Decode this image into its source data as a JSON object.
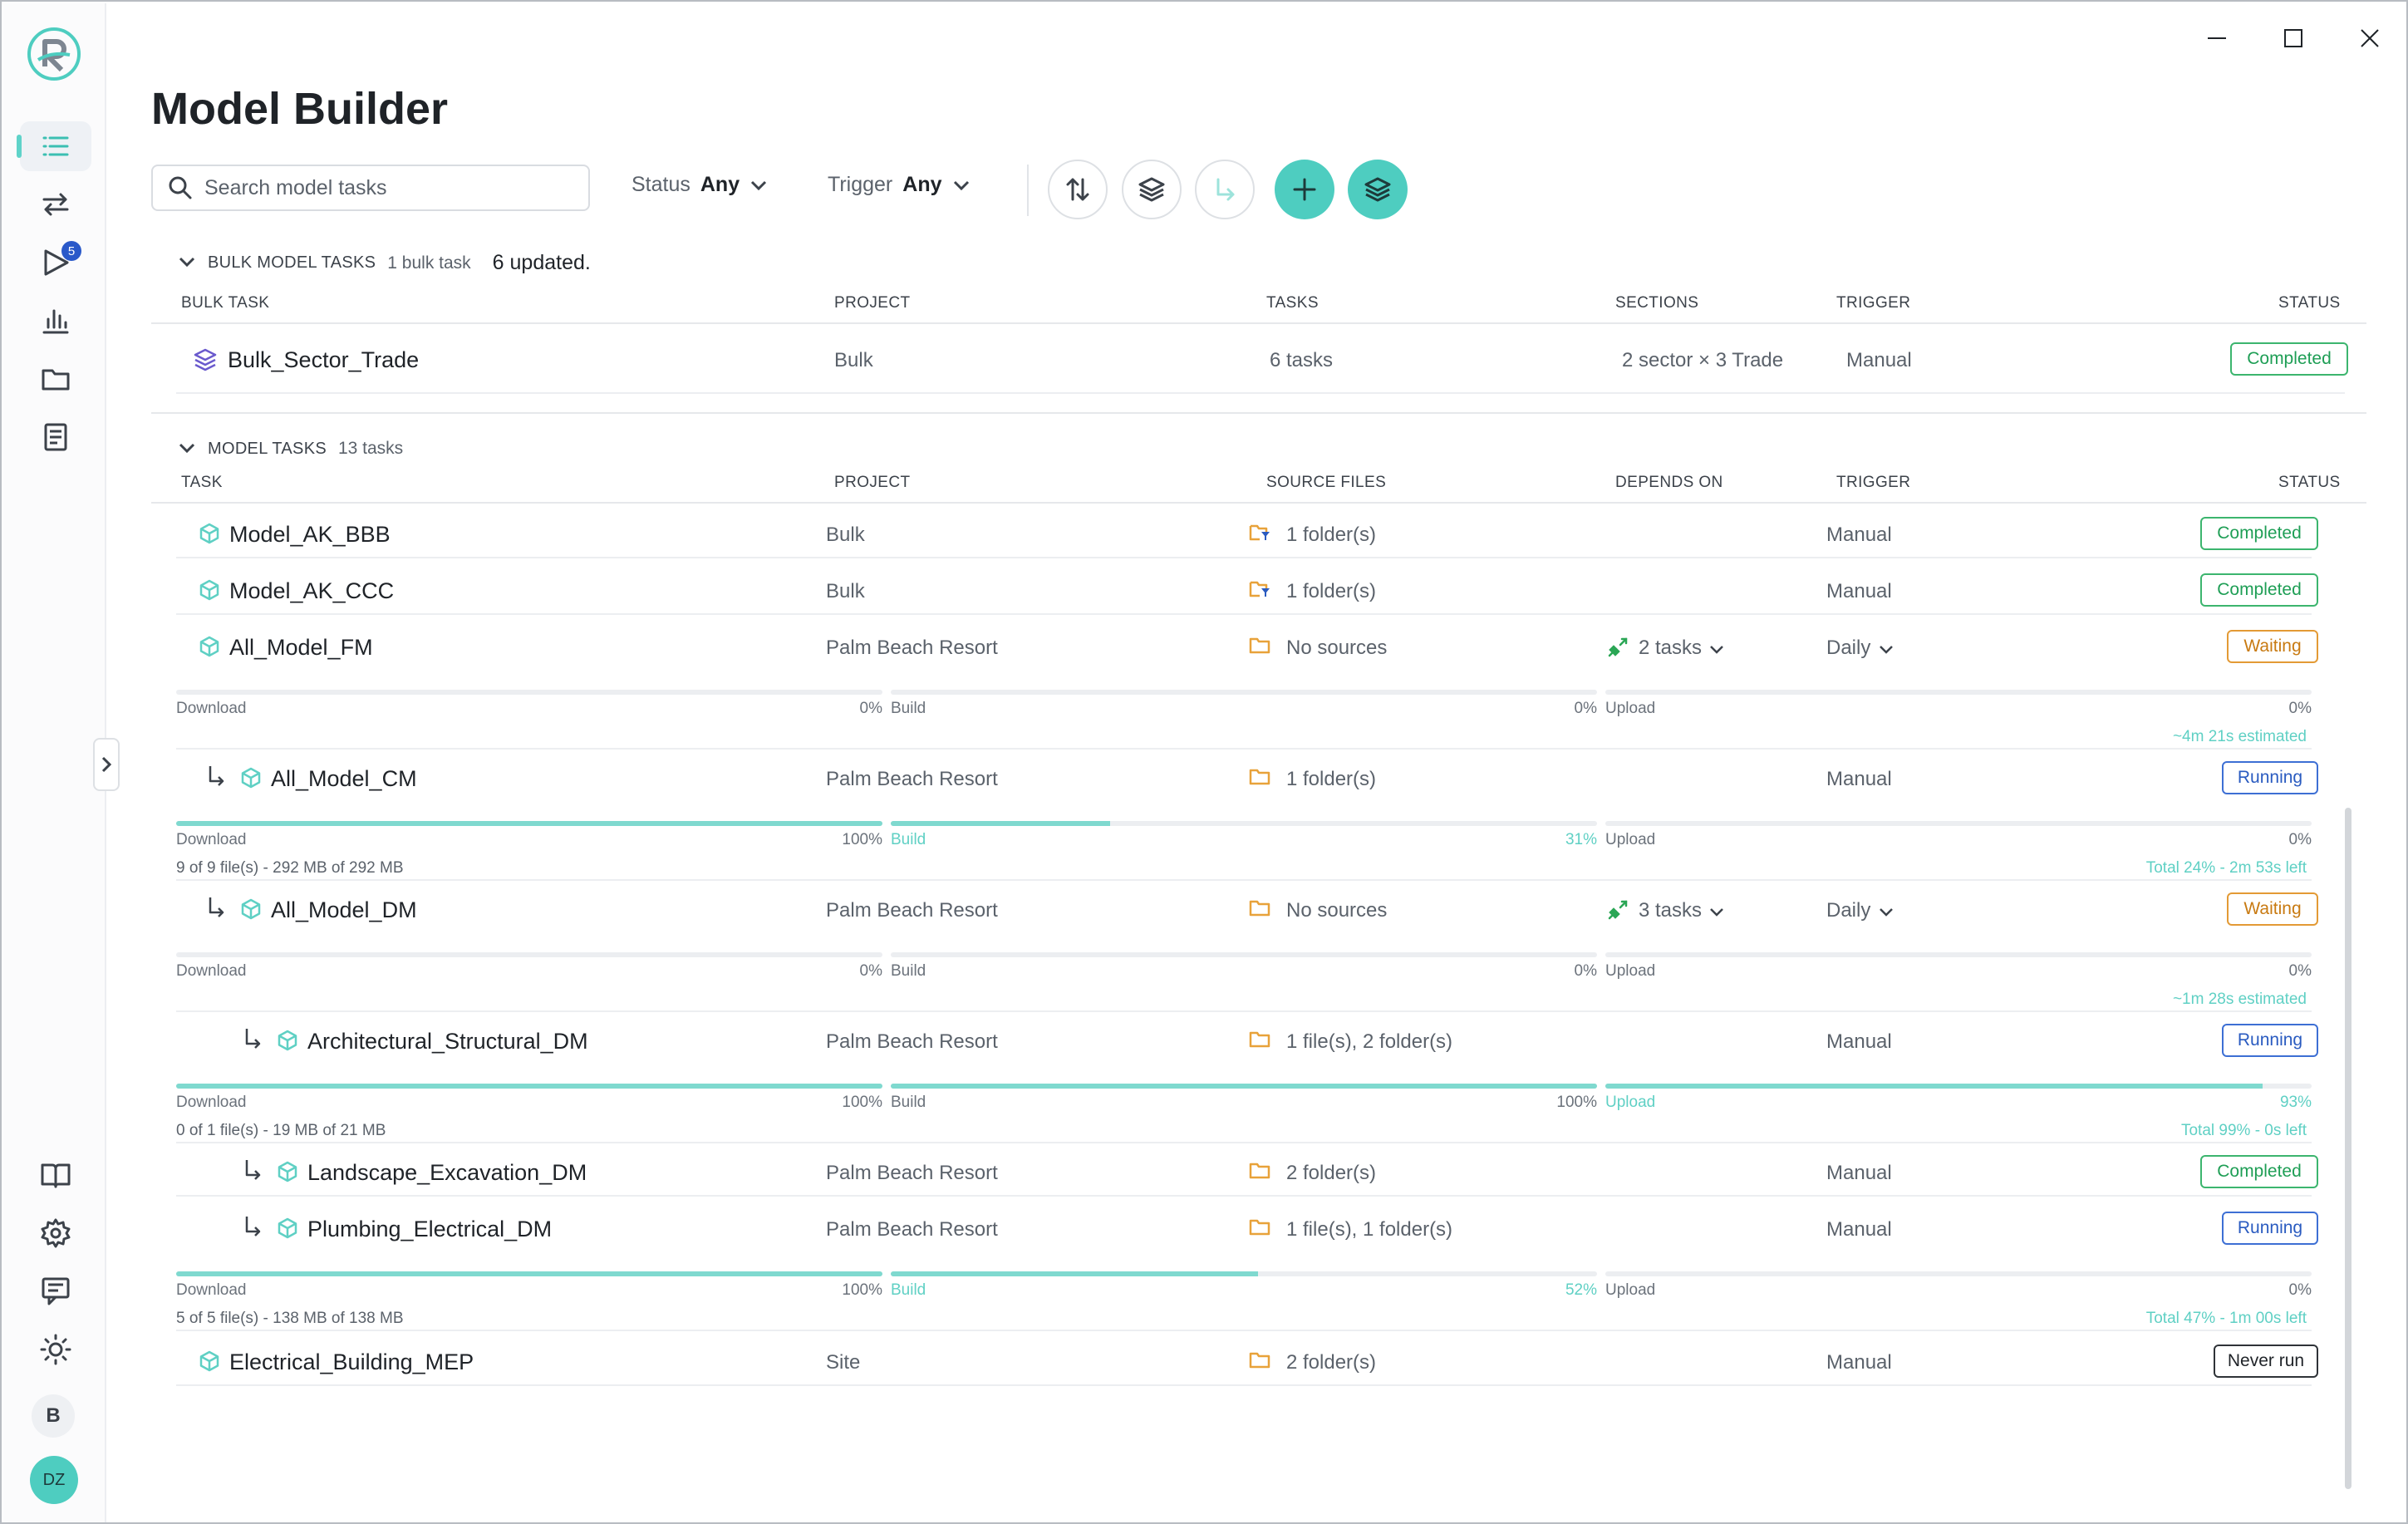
{
  "app": {
    "title": "Model Builder"
  },
  "sidebar": {
    "badge_count": "5",
    "items": [
      "tasks-list-icon",
      "transfer-icon",
      "play-queue-icon",
      "analytics-icon",
      "folder-icon",
      "document-icon"
    ],
    "bottom": [
      "book-icon",
      "settings-icon",
      "feedback-icon",
      "theme-icon"
    ],
    "avatar_b": "B",
    "avatar_user": "DZ"
  },
  "toolbar": {
    "search_placeholder": "Search model tasks",
    "status_label": "Status",
    "status_value": "Any",
    "trigger_label": "Trigger",
    "trigger_value": "Any"
  },
  "bulk": {
    "section_title": "BULK MODEL TASKS",
    "count": "1 bulk task",
    "updated": "6 updated.",
    "columns": [
      "BULK TASK",
      "PROJECT",
      "TASKS",
      "SECTIONS",
      "TRIGGER",
      "STATUS"
    ],
    "row": {
      "name": "Bulk_Sector_Trade",
      "project": "Bulk",
      "tasks": "6 tasks",
      "sections": "2 sector × 3 Trade",
      "trigger": "Manual",
      "status": "Completed"
    }
  },
  "model": {
    "section_title": "MODEL TASKS",
    "count": "13 tasks",
    "columns": [
      "TASK",
      "PROJECT",
      "SOURCE FILES",
      "DEPENDS ON",
      "TRIGGER",
      "STATUS"
    ],
    "rows": [
      {
        "name": "Model_AK_BBB",
        "project": "Bulk",
        "sources": "1 folder(s)",
        "depends": "",
        "trigger": "Manual",
        "status": "Completed"
      },
      {
        "name": "Model_AK_CCC",
        "project": "Bulk",
        "sources": "1 folder(s)",
        "depends": "",
        "trigger": "Manual",
        "status": "Completed"
      },
      {
        "name": "All_Model_FM",
        "project": "Palm Beach Resort",
        "sources": "No sources",
        "depends": "2 tasks",
        "trigger": "Daily",
        "status": "Waiting",
        "progress": {
          "download": "0%",
          "build": "0%",
          "upload": "0%",
          "download_fill": 0,
          "build_fill": 0,
          "upload_fill": 0,
          "summary": "~4m 21s estimated",
          "meta": ""
        }
      },
      {
        "name": "All_Model_CM",
        "project": "Palm Beach Resort",
        "sources": "1 folder(s)",
        "depends": "",
        "trigger": "Manual",
        "status": "Running",
        "progress": {
          "download": "100%",
          "build": "31%",
          "upload": "0%",
          "download_fill": 1.0,
          "build_fill": 0.31,
          "upload_fill": 0,
          "summary": "Total 24% - 2m 53s left",
          "meta": "9 of 9 file(s) - 292 MB of 292 MB"
        }
      },
      {
        "name": "All_Model_DM",
        "project": "Palm Beach Resort",
        "sources": "No sources",
        "depends": "3 tasks",
        "trigger": "Daily",
        "status": "Waiting",
        "progress": {
          "download": "0%",
          "build": "0%",
          "upload": "0%",
          "download_fill": 0,
          "build_fill": 0,
          "upload_fill": 0,
          "summary": "~1m 28s estimated",
          "meta": ""
        }
      },
      {
        "name": "Architectural_Structural_DM",
        "project": "Palm Beach Resort",
        "sources": "1 file(s), 2 folder(s)",
        "depends": "",
        "trigger": "Manual",
        "status": "Running",
        "progress": {
          "download": "100%",
          "build": "100%",
          "upload": "93%",
          "download_fill": 1.0,
          "build_fill": 1.0,
          "upload_fill": 0.93,
          "summary": "Total 99% - 0s left",
          "meta": "0 of 1 file(s) - 19 MB of 21 MB"
        }
      },
      {
        "name": "Landscape_Excavation_DM",
        "project": "Palm Beach Resort",
        "sources": "2 folder(s)",
        "depends": "",
        "trigger": "Manual",
        "status": "Completed"
      },
      {
        "name": "Plumbing_Electrical_DM",
        "project": "Palm Beach Resort",
        "sources": "1 file(s), 1 folder(s)",
        "depends": "",
        "trigger": "Manual",
        "status": "Running",
        "progress": {
          "download": "100%",
          "build": "52%",
          "upload": "0%",
          "download_fill": 1.0,
          "build_fill": 0.52,
          "upload_fill": 0,
          "summary": "Total 47% - 1m 00s left",
          "meta": "5 of 5 file(s) - 138 MB of 138 MB"
        }
      },
      {
        "name": "Electrical_Building_MEP",
        "project": "Site",
        "sources": "2 folder(s)",
        "depends": "",
        "trigger": "Manual",
        "status": "Never run"
      }
    ],
    "stage_labels": {
      "download": "Download",
      "build": "Build",
      "upload": "Upload"
    }
  },
  "colors": {
    "accent": "#4ecdc0",
    "completed": "#1e9e55",
    "waiting": "#c87a12",
    "running": "#2a5bc0",
    "source_folder": "#e8a23a",
    "dependency": "#2aa655"
  }
}
